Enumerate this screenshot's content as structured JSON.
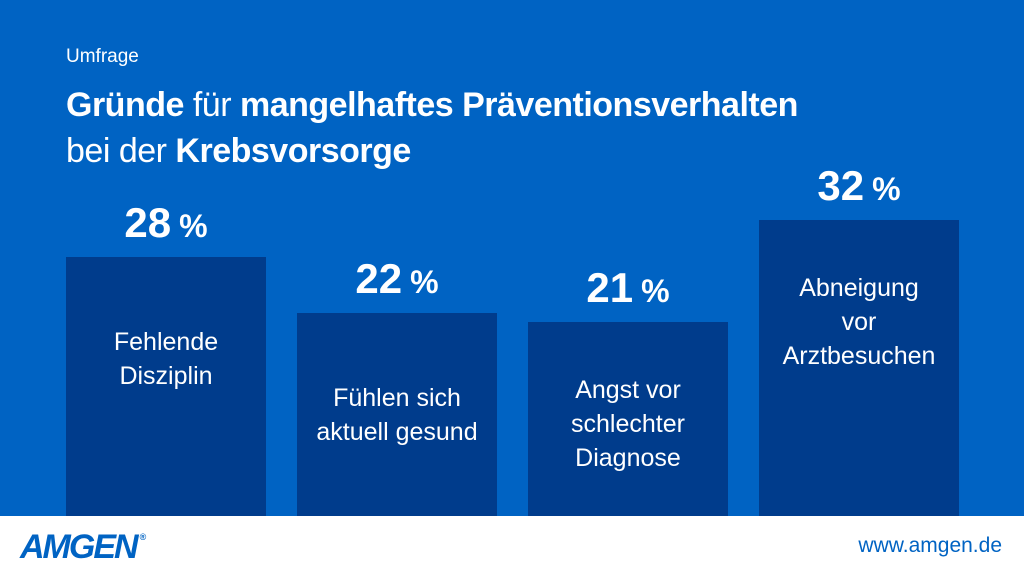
{
  "header": {
    "kicker": "Umfrage",
    "title_line1_bold_a": "Gründe",
    "title_line1_regular": " für ",
    "title_line1_bold_b": "mangelhaftes Präventionsverhalten",
    "title_line2_regular": "bei der ",
    "title_line2_bold": "Krebsvorsorge"
  },
  "chart_data": {
    "type": "bar",
    "categories": [
      [
        "Fehlende",
        "Disziplin"
      ],
      [
        "Fühlen sich",
        "aktuell gesund"
      ],
      [
        "Angst vor",
        "schlechter",
        "Diagnose"
      ],
      [
        "Abneigung",
        "vor",
        "Arztbesuchen"
      ]
    ],
    "values": [
      28,
      22,
      21,
      32
    ],
    "value_suffix": "%",
    "ylim": [
      0,
      42
    ],
    "grid": false,
    "legend": "none"
  },
  "colors": {
    "background": "#0063c3",
    "bar": "#003c8c",
    "text": "#ffffff",
    "footer_bg": "#ffffff",
    "brand": "#0063c3"
  },
  "footer": {
    "logo_text": "AMGEN",
    "logo_mark": "®",
    "url": "www.amgen.de"
  }
}
